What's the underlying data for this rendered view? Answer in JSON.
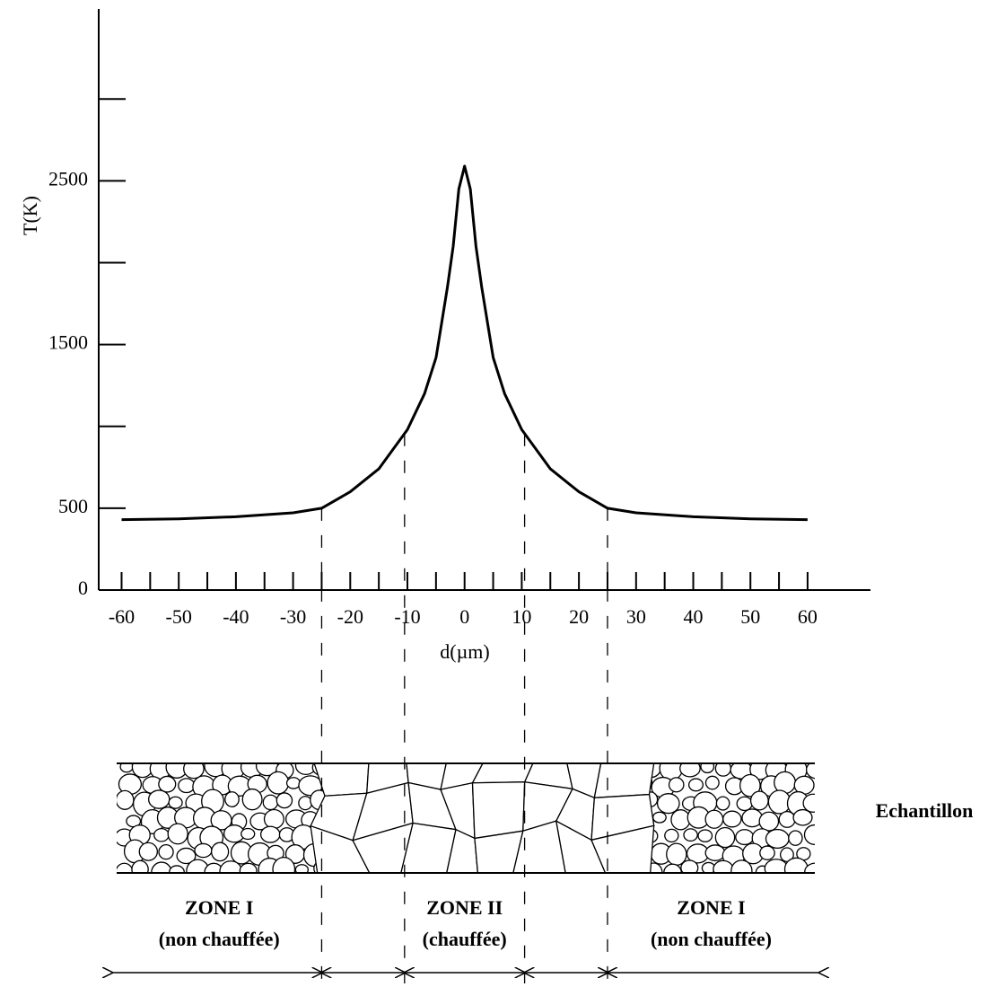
{
  "chart_data": {
    "type": "line",
    "y_label": "T(K)",
    "x_label": "d(µm)",
    "x": [
      -60,
      -50,
      -40,
      -30,
      -25,
      -20,
      -15,
      -10,
      -7,
      -5,
      -3,
      -2,
      -1,
      0,
      1,
      2,
      3,
      5,
      7,
      10,
      15,
      20,
      25,
      30,
      40,
      50,
      60
    ],
    "values": [
      430,
      435,
      448,
      472,
      500,
      600,
      740,
      980,
      1200,
      1420,
      1850,
      2100,
      2450,
      2590,
      2450,
      2100,
      1850,
      1420,
      1200,
      980,
      740,
      600,
      500,
      472,
      448,
      435,
      430
    ],
    "color": "#000000",
    "xlim": [
      -64,
      71
    ],
    "ylim": [
      0,
      3550
    ],
    "xticks": [
      -60,
      -50,
      -40,
      -30,
      -20,
      -10,
      0,
      10,
      20,
      30,
      40,
      50,
      60
    ],
    "x_minor_ticks": [
      -55,
      -45,
      -35,
      -25,
      -15,
      -5,
      5,
      15,
      25,
      35,
      45,
      55
    ],
    "yticks": [
      0,
      500,
      1500,
      2500
    ],
    "y_minor_ticks": [
      1000,
      2000,
      3000
    ],
    "boundaries": [
      -25,
      -10.5,
      10.5,
      25
    ],
    "sample": {
      "label": "Echantillon",
      "zones": [
        {
          "title": "ZONE I",
          "subtitle": "(non chauffée)"
        },
        {
          "title": "ZONE II",
          "subtitle": "(chauffée)"
        },
        {
          "title": "ZONE I",
          "subtitle": "(non chauffée)"
        }
      ]
    }
  }
}
